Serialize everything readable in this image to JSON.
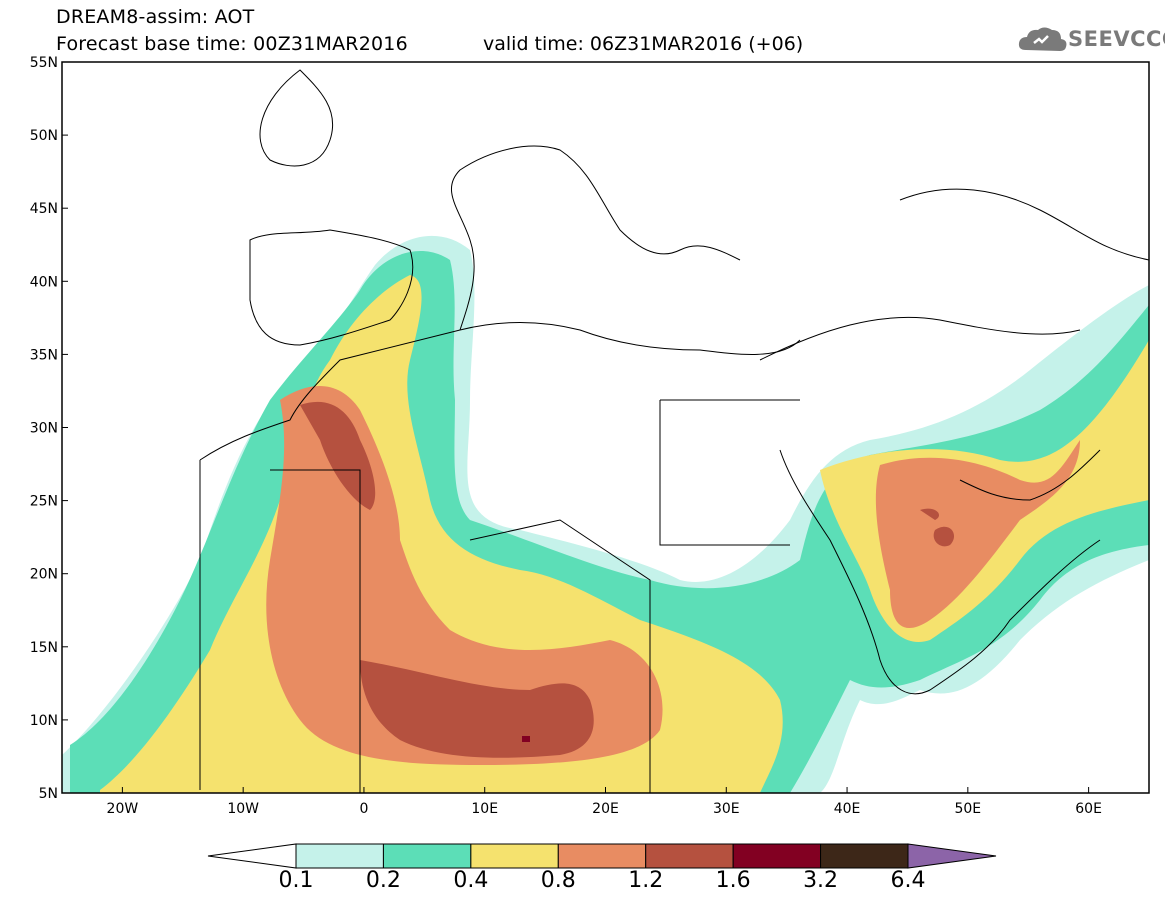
{
  "header": {
    "line1": "DREAM8-assim: AOT",
    "line2": "Forecast base time: 00Z31MAR2016",
    "valid": "valid time: 06Z31MAR2016 (+06)",
    "logo": "SEEVCCC"
  },
  "axes": {
    "lon_ticks": [
      {
        "lon": -20,
        "label": "20W"
      },
      {
        "lon": -10,
        "label": "10W"
      },
      {
        "lon": 0,
        "label": "0"
      },
      {
        "lon": 10,
        "label": "10E"
      },
      {
        "lon": 20,
        "label": "20E"
      },
      {
        "lon": 30,
        "label": "30E"
      },
      {
        "lon": 40,
        "label": "40E"
      },
      {
        "lon": 50,
        "label": "50E"
      },
      {
        "lon": 60,
        "label": "60E"
      }
    ],
    "lat_ticks": [
      {
        "lat": 55,
        "label": "55N"
      },
      {
        "lat": 50,
        "label": "50N"
      },
      {
        "lat": 45,
        "label": "45N"
      },
      {
        "lat": 40,
        "label": "40N"
      },
      {
        "lat": 35,
        "label": "35N"
      },
      {
        "lat": 30,
        "label": "30N"
      },
      {
        "lat": 25,
        "label": "25N"
      },
      {
        "lat": 20,
        "label": "20N"
      },
      {
        "lat": 15,
        "label": "15N"
      },
      {
        "lat": 10,
        "label": "10N"
      },
      {
        "lat": 5,
        "label": "5N"
      }
    ],
    "lon_range": [
      -25,
      65
    ],
    "lat_range": [
      5,
      55
    ]
  },
  "colorbar": {
    "levels": [
      "0.1",
      "0.2",
      "0.4",
      "0.8",
      "1.2",
      "1.6",
      "3.2",
      "6.4"
    ],
    "colors": [
      "#ffffff",
      "#c5f2ea",
      "#5cdeb7",
      "#f5e26e",
      "#e88c62",
      "#b5513f",
      "#820022",
      "#3d2718",
      "#8c64a8"
    ]
  }
}
